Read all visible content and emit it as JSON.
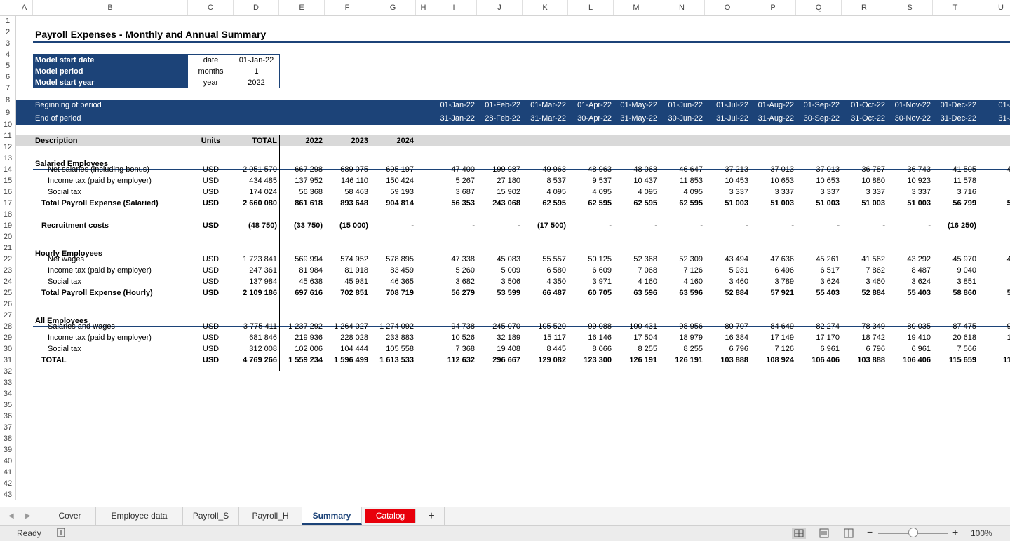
{
  "columns": [
    "A",
    "B",
    "C",
    "D",
    "E",
    "F",
    "G",
    "H",
    "I",
    "J",
    "K",
    "L",
    "M",
    "N",
    "O",
    "P",
    "Q",
    "R",
    "S",
    "T",
    "U"
  ],
  "title": "Payroll Expenses - Monthly and Annual Summary",
  "inputs": [
    {
      "label": "Model start date",
      "unit": "date",
      "value": "01-Jan-22"
    },
    {
      "label": "Model period",
      "unit": "months",
      "value": "1"
    },
    {
      "label": "Model start year",
      "unit": "year",
      "value": "2022"
    }
  ],
  "periods": {
    "begin_label": "Beginning of period",
    "end_label": "End of period",
    "begin": [
      "01-Jan-22",
      "01-Feb-22",
      "01-Mar-22",
      "01-Apr-22",
      "01-May-22",
      "01-Jun-22",
      "01-Jul-22",
      "01-Aug-22",
      "01-Sep-22",
      "01-Oct-22",
      "01-Nov-22",
      "01-Dec-22",
      "01-Jan"
    ],
    "end": [
      "31-Jan-22",
      "28-Feb-22",
      "31-Mar-22",
      "30-Apr-22",
      "31-May-22",
      "30-Jun-22",
      "31-Jul-22",
      "31-Aug-22",
      "30-Sep-22",
      "31-Oct-22",
      "30-Nov-22",
      "31-Dec-22",
      "31-Jan"
    ]
  },
  "header": {
    "description": "Description",
    "units": "Units",
    "total": "TOTAL",
    "y1": "2022",
    "y2": "2023",
    "y3": "2024"
  },
  "sections": {
    "salaried": "Salaried Employees",
    "hourly": "Hourly Employees",
    "all": "All Employees"
  },
  "rows": {
    "r14": {
      "desc": "Net salaries (including bonus)",
      "unit": "USD",
      "total": "2 051 570",
      "y": [
        "667 298",
        "689 075",
        "695 197"
      ],
      "m": [
        "47 400",
        "199 987",
        "49 963",
        "48 963",
        "48 063",
        "46 647",
        "37 213",
        "37 013",
        "37 013",
        "36 787",
        "36 743",
        "41 505",
        "49 4"
      ]
    },
    "r15": {
      "desc": "Income tax (paid by employer)",
      "unit": "USD",
      "total": "434 485",
      "y": [
        "137 952",
        "146 110",
        "150 424"
      ],
      "m": [
        "5 267",
        "27 180",
        "8 537",
        "9 537",
        "10 437",
        "11 853",
        "10 453",
        "10 653",
        "10 653",
        "10 880",
        "10 923",
        "11 578",
        "5 4"
      ]
    },
    "r16": {
      "desc": "Social tax",
      "unit": "USD",
      "total": "174 024",
      "y": [
        "56 368",
        "58 463",
        "59 193"
      ],
      "m": [
        "3 687",
        "15 902",
        "4 095",
        "4 095",
        "4 095",
        "4 095",
        "3 337",
        "3 337",
        "3 337",
        "3 337",
        "3 337",
        "3 716",
        "3 8"
      ]
    },
    "r17": {
      "desc": "Total Payroll Expense (Salaried)",
      "unit": "USD",
      "total": "2 660 080",
      "y": [
        "861 618",
        "893 648",
        "904 814"
      ],
      "m": [
        "56 353",
        "243 068",
        "62 595",
        "62 595",
        "62 595",
        "62 595",
        "51 003",
        "51 003",
        "51 003",
        "51 003",
        "51 003",
        "56 799",
        "58 8"
      ]
    },
    "r19": {
      "desc": "Recruitment costs",
      "unit": "USD",
      "total": "(48 750)",
      "y": [
        "(33 750)",
        "(15 000)",
        "-"
      ],
      "m": [
        "-",
        "-",
        "(17 500)",
        "-",
        "-",
        "-",
        "-",
        "-",
        "-",
        "-",
        "-",
        "(16 250)",
        ""
      ]
    },
    "r22": {
      "desc": "Net wages",
      "unit": "USD",
      "total": "1 723 841",
      "y": [
        "569 994",
        "574 952",
        "578 895"
      ],
      "m": [
        "47 338",
        "45 083",
        "55 557",
        "50 125",
        "52 368",
        "52 309",
        "43 494",
        "47 636",
        "45 261",
        "41 562",
        "43 292",
        "45 970",
        "49 5"
      ]
    },
    "r23": {
      "desc": "Income tax (paid by employer)",
      "unit": "USD",
      "total": "247 361",
      "y": [
        "81 984",
        "81 918",
        "83 459"
      ],
      "m": [
        "5 260",
        "5 009",
        "6 580",
        "6 609",
        "7 068",
        "7 126",
        "5 931",
        "6 496",
        "6 517",
        "7 862",
        "8 487",
        "9 040",
        "5 5"
      ]
    },
    "r24": {
      "desc": "Social tax",
      "unit": "USD",
      "total": "137 984",
      "y": [
        "45 638",
        "45 981",
        "46 365"
      ],
      "m": [
        "3 682",
        "3 506",
        "4 350",
        "3 971",
        "4 160",
        "4 160",
        "3 460",
        "3 789",
        "3 624",
        "3 460",
        "3 624",
        "3 851",
        "3 8"
      ]
    },
    "r25": {
      "desc": "Total Payroll Expense (Hourly)",
      "unit": "USD",
      "total": "2 109 186",
      "y": [
        "697 616",
        "702 851",
        "708 719"
      ],
      "m": [
        "56 279",
        "53 599",
        "66 487",
        "60 705",
        "63 596",
        "63 596",
        "52 884",
        "57 921",
        "55 403",
        "52 884",
        "55 403",
        "58 860",
        "58 8"
      ]
    },
    "r28": {
      "desc": "Salaries and wages",
      "unit": "USD",
      "total": "3 775 411",
      "y": [
        "1 237 292",
        "1 264 027",
        "1 274 092"
      ],
      "m": [
        "94 738",
        "245 070",
        "105 520",
        "99 088",
        "100 431",
        "98 956",
        "80 707",
        "84 649",
        "82 274",
        "78 349",
        "80 035",
        "87 475",
        "98 9"
      ]
    },
    "r29": {
      "desc": "Income tax (paid by employer)",
      "unit": "USD",
      "total": "681 846",
      "y": [
        "219 936",
        "228 028",
        "233 883"
      ],
      "m": [
        "10 526",
        "32 189",
        "15 117",
        "16 146",
        "17 504",
        "18 979",
        "16 384",
        "17 149",
        "17 170",
        "18 742",
        "19 410",
        "20 618",
        "10 9"
      ]
    },
    "r30": {
      "desc": "Social tax",
      "unit": "USD",
      "total": "312 008",
      "y": [
        "102 006",
        "104 444",
        "105 558"
      ],
      "m": [
        "7 368",
        "19 408",
        "8 445",
        "8 066",
        "8 255",
        "8 255",
        "6 796",
        "7 126",
        "6 961",
        "6 796",
        "6 961",
        "7 566",
        "7 6"
      ]
    },
    "r31": {
      "desc": "TOTAL",
      "unit": "USD",
      "total": "4 769 266",
      "y": [
        "1 559 234",
        "1 596 499",
        "1 613 533"
      ],
      "m": [
        "112 632",
        "296 667",
        "129 082",
        "123 300",
        "126 191",
        "126 191",
        "103 888",
        "108 924",
        "106 406",
        "103 888",
        "106 406",
        "115 659",
        "117 6"
      ]
    }
  },
  "tabs": [
    "Cover",
    "Employee data",
    "Payroll_S",
    "Payroll_H",
    "Summary",
    "Catalog"
  ],
  "active_tab": "Summary",
  "add_tab": "+",
  "status": {
    "ready": "Ready",
    "zoom": "100%",
    "zoom_level_percent": 100
  },
  "colors": {
    "navy": "#1c4378",
    "catalog_red": "#e8000b",
    "band_gray": "#d9d9d9"
  }
}
